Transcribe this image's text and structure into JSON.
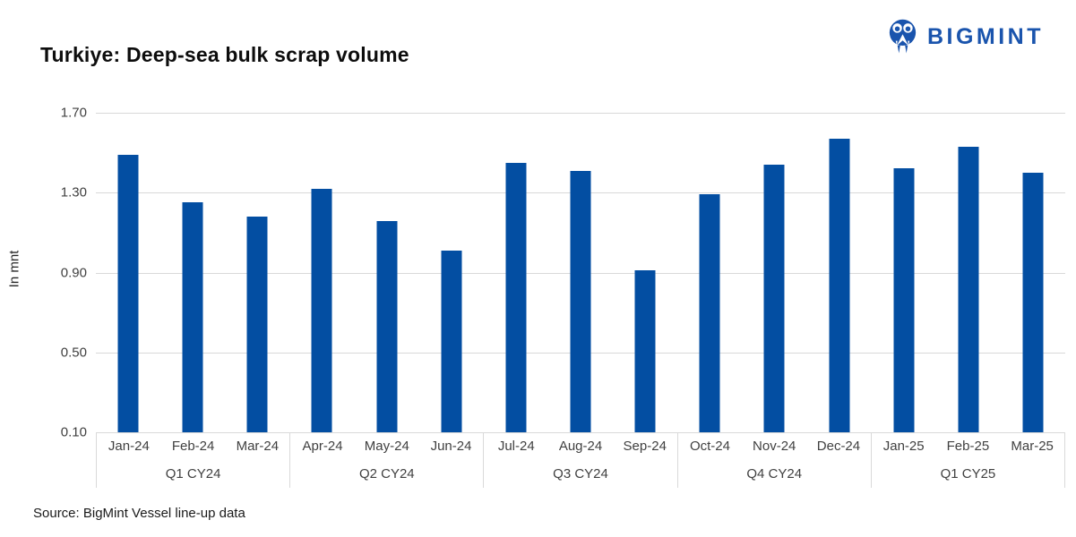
{
  "page": {
    "title": "Turkiye: Deep-sea bulk scrap volume"
  },
  "logo": {
    "text": "BIGMINT",
    "icon": "bigmint-owl-monogram-icon",
    "color": "#1a54ad"
  },
  "chart_data": {
    "type": "bar",
    "title": "Turkiye: Deep-sea bulk scrap volume",
    "xlabel": "",
    "ylabel": "In mnt",
    "ylim": [
      0.1,
      1.7
    ],
    "ytick_labels": [
      "1.70",
      "1.30",
      "0.90",
      "0.50",
      "0.10"
    ],
    "grid": true,
    "legend_position": "none",
    "bar_color": "#034ea2",
    "gridline_color": "#d9d9d9",
    "categories": [
      "Jan-24",
      "Feb-24",
      "Mar-24",
      "Apr-24",
      "May-24",
      "Jun-24",
      "Jul-24",
      "Aug-24",
      "Sep-24",
      "Oct-24",
      "Nov-24",
      "Dec-24",
      "Jan-25",
      "Feb-25",
      "Mar-25"
    ],
    "values": [
      1.49,
      1.25,
      1.18,
      1.32,
      1.16,
      1.01,
      1.45,
      1.41,
      0.91,
      1.29,
      1.44,
      1.57,
      1.42,
      1.53,
      1.4
    ],
    "groups": [
      {
        "quarter": "Q1 CY24",
        "months": [
          "Jan-24",
          "Feb-24",
          "Mar-24"
        ],
        "values": [
          1.49,
          1.25,
          1.18
        ]
      },
      {
        "quarter": "Q2 CY24",
        "months": [
          "Apr-24",
          "May-24",
          "Jun-24"
        ],
        "values": [
          1.32,
          1.16,
          1.01
        ]
      },
      {
        "quarter": "Q3 CY24",
        "months": [
          "Jul-24",
          "Aug-24",
          "Sep-24"
        ],
        "values": [
          1.45,
          1.41,
          0.91
        ]
      },
      {
        "quarter": "Q4 CY24",
        "months": [
          "Oct-24",
          "Nov-24",
          "Dec-24"
        ],
        "values": [
          1.29,
          1.44,
          1.57
        ]
      },
      {
        "quarter": "Q1 CY25",
        "months": [
          "Jan-25",
          "Feb-25",
          "Mar-25"
        ],
        "values": [
          1.42,
          1.53,
          1.4
        ]
      }
    ]
  },
  "footer": {
    "source": "Source: BigMint Vessel line-up data"
  }
}
